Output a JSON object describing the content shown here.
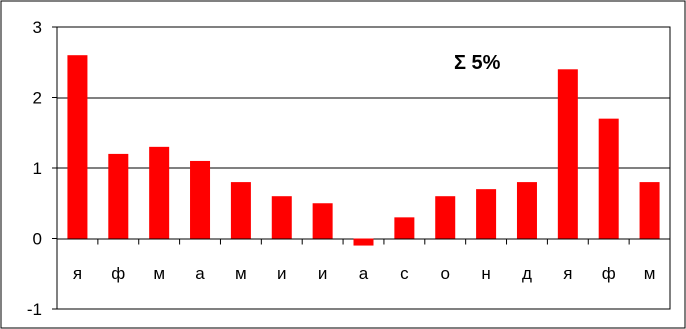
{
  "chart_data": {
    "type": "bar",
    "categories": [
      "я",
      "ф",
      "м",
      "а",
      "м",
      "и",
      "и",
      "а",
      "с",
      "о",
      "н",
      "д",
      "я",
      "ф",
      "м"
    ],
    "values": [
      2.6,
      1.2,
      1.3,
      1.1,
      0.8,
      0.6,
      0.5,
      -0.1,
      0.3,
      0.6,
      0.7,
      0.8,
      2.4,
      1.7,
      0.8
    ],
    "annotation": "Σ 5%",
    "y_ticks": [
      "-1",
      "0",
      "1",
      "2",
      "3"
    ],
    "ylim": [
      -1,
      3
    ],
    "grid": true,
    "bar_color": "#ff0000"
  }
}
